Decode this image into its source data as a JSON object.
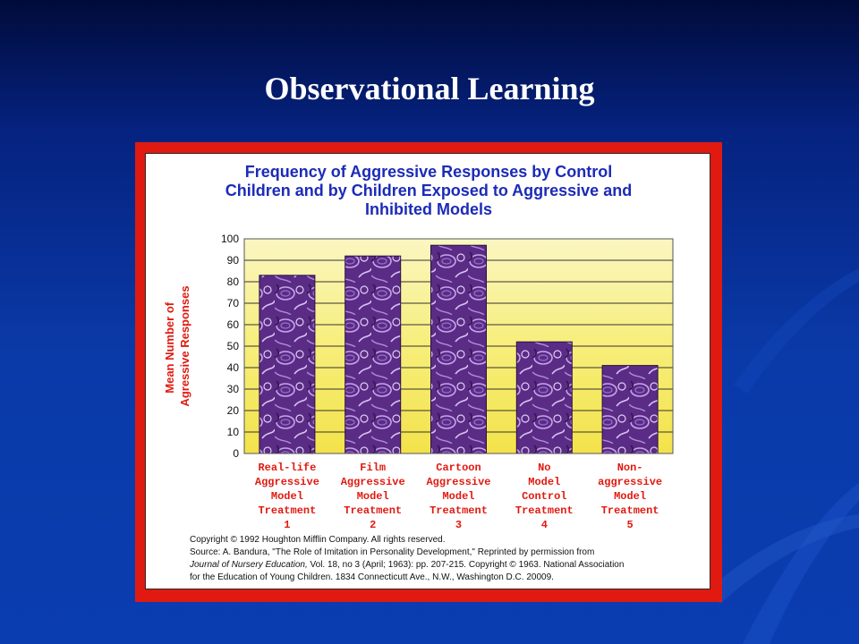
{
  "slide": {
    "title": "Observational Learning"
  },
  "colors": {
    "frame": "#e01a10",
    "chart_title": "#1c2bb8",
    "labels": "#e01a10",
    "plot_background": "#f7ee7a",
    "bars": "#5a2c86"
  },
  "chart_data": {
    "type": "bar",
    "title": "Frequency of Aggressive Responses by Control Children and by Children Exposed to Aggressive and Inhibited Models",
    "title_lines": [
      "Frequency of Aggressive Responses by Control",
      "Children and by Children Exposed to Aggressive and",
      "Inhibited Models"
    ],
    "ylabel": "Mean Number of Agressive Responses",
    "ylabel_lines": [
      "Mean Number of",
      "Agressive Responses"
    ],
    "xlabel": "",
    "ylim": [
      0,
      100
    ],
    "yticks": [
      0,
      10,
      20,
      30,
      40,
      50,
      60,
      70,
      80,
      90,
      100
    ],
    "grid": true,
    "categories": [
      [
        "Real-life",
        "Aggressive",
        "Model",
        "Treatment",
        "1"
      ],
      [
        "Film",
        "Aggressive",
        "Model",
        "Treatment",
        "2"
      ],
      [
        "Cartoon",
        "Aggressive",
        "Model",
        "Treatment",
        "3"
      ],
      [
        "No",
        "Model",
        "Control",
        "Treatment",
        "4"
      ],
      [
        "Non-",
        "aggressive",
        "Model",
        "Treatment",
        "5"
      ]
    ],
    "values": [
      83,
      92,
      97,
      52,
      41
    ]
  },
  "credits": {
    "line1": "Copyright © 1992 Houghton Mifflin Company.  All rights reserved.",
    "line2": "Source:  A. Bandura, \"The Role of Imitation in Personality Development,\" Reprinted by permission from",
    "line3_journal": "Journal of Nursery Education,",
    "line3_rest": " Vol. 18, no 3 (April; 1963): pp. 207-215.  Copyright © 1963.  National Association",
    "line4": "for the Education of Young Children.  1834 Connecticutt Ave., N.W., Washington D.C. 20009."
  }
}
